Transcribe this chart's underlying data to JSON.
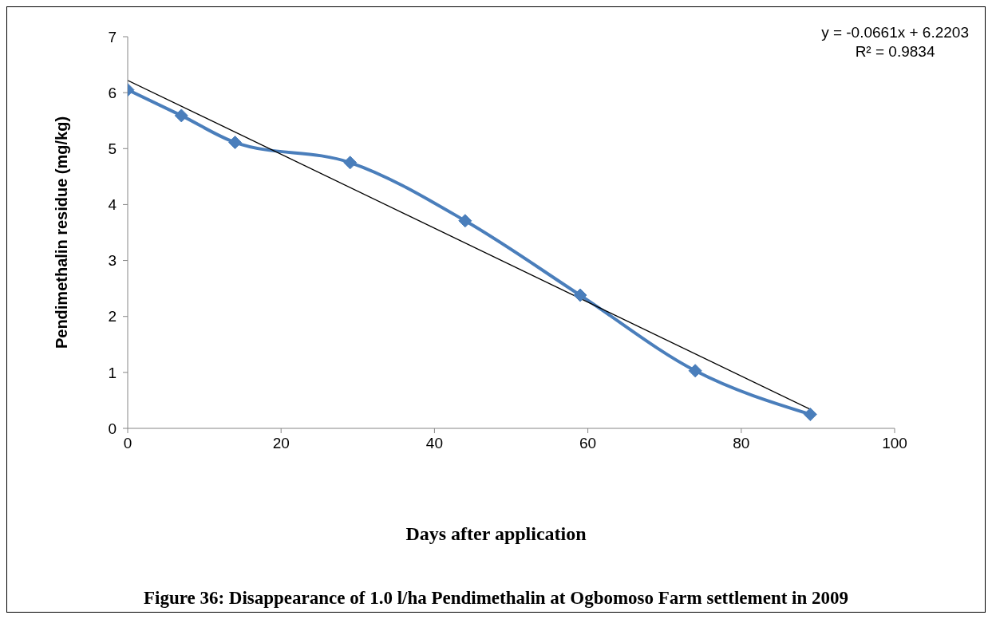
{
  "chart_data": {
    "type": "line",
    "title": "Figure 36: Disappearance of 1.0 l/ha Pendimethalin at Ogbomoso Farm settlement in 2009",
    "xlabel": "Days after application",
    "ylabel": "Pendimethalin residue (mg/kg)",
    "annotations": [
      "y = -0.0661x + 6.2203",
      "R² = 0.9834"
    ],
    "xlim": [
      0,
      100
    ],
    "xticks": [
      0,
      20,
      40,
      60,
      80,
      100
    ],
    "ylim": [
      0,
      7
    ],
    "yticks": [
      0,
      1,
      2,
      3,
      4,
      5,
      6,
      7
    ],
    "grid": false,
    "legend": false,
    "marker": "diamond",
    "series": [
      {
        "color": "#4a7ebb",
        "x": [
          0,
          7,
          14,
          29,
          44,
          59,
          74,
          89
        ],
        "values": [
          6.05,
          5.59,
          5.11,
          4.75,
          3.71,
          2.38,
          1.03,
          0.25
        ]
      },
      {
        "color": "#000000",
        "marker": "none",
        "x": [
          0,
          89
        ],
        "values": [
          6.22,
          0.34
        ]
      }
    ]
  }
}
